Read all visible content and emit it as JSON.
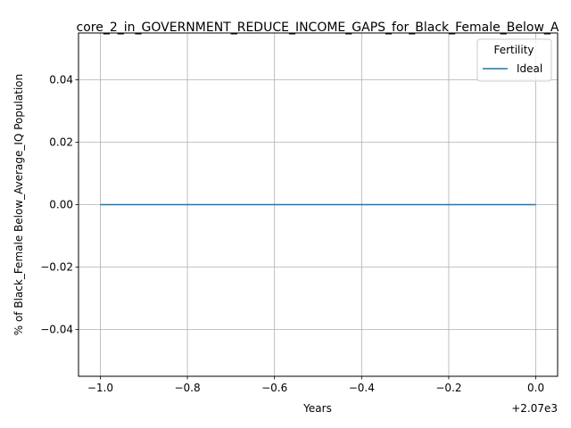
{
  "chart_data": {
    "type": "line",
    "title": "core_2_in_GOVERNMENT_REDUCE_INCOME_GAPS_for_Black_Female_Below_A",
    "xlabel": "Years",
    "ylabel": "% of Black_Female Below_Average_IQ Population",
    "x_offset_label": "+2.07e3",
    "xlim": [
      -1.05,
      0.05
    ],
    "ylim": [
      -0.055,
      0.055
    ],
    "x_ticks": [
      -1.0,
      -0.8,
      -0.6,
      -0.4,
      -0.2,
      0.0
    ],
    "x_tick_labels": [
      "−1.0",
      "−0.8",
      "−0.6",
      "−0.4",
      "−0.2",
      "0.0"
    ],
    "y_ticks": [
      -0.04,
      -0.02,
      0.0,
      0.02,
      0.04
    ],
    "y_tick_labels": [
      "−0.04",
      "−0.02",
      "0.00",
      "0.02",
      "0.04"
    ],
    "grid": true,
    "legend": {
      "title": "Fertility",
      "placement": "top-right"
    },
    "series": [
      {
        "name": "Ideal",
        "color": "#1f77b4",
        "x": [
          -1.0,
          0.0
        ],
        "y": [
          0.0,
          0.0
        ]
      }
    ]
  }
}
